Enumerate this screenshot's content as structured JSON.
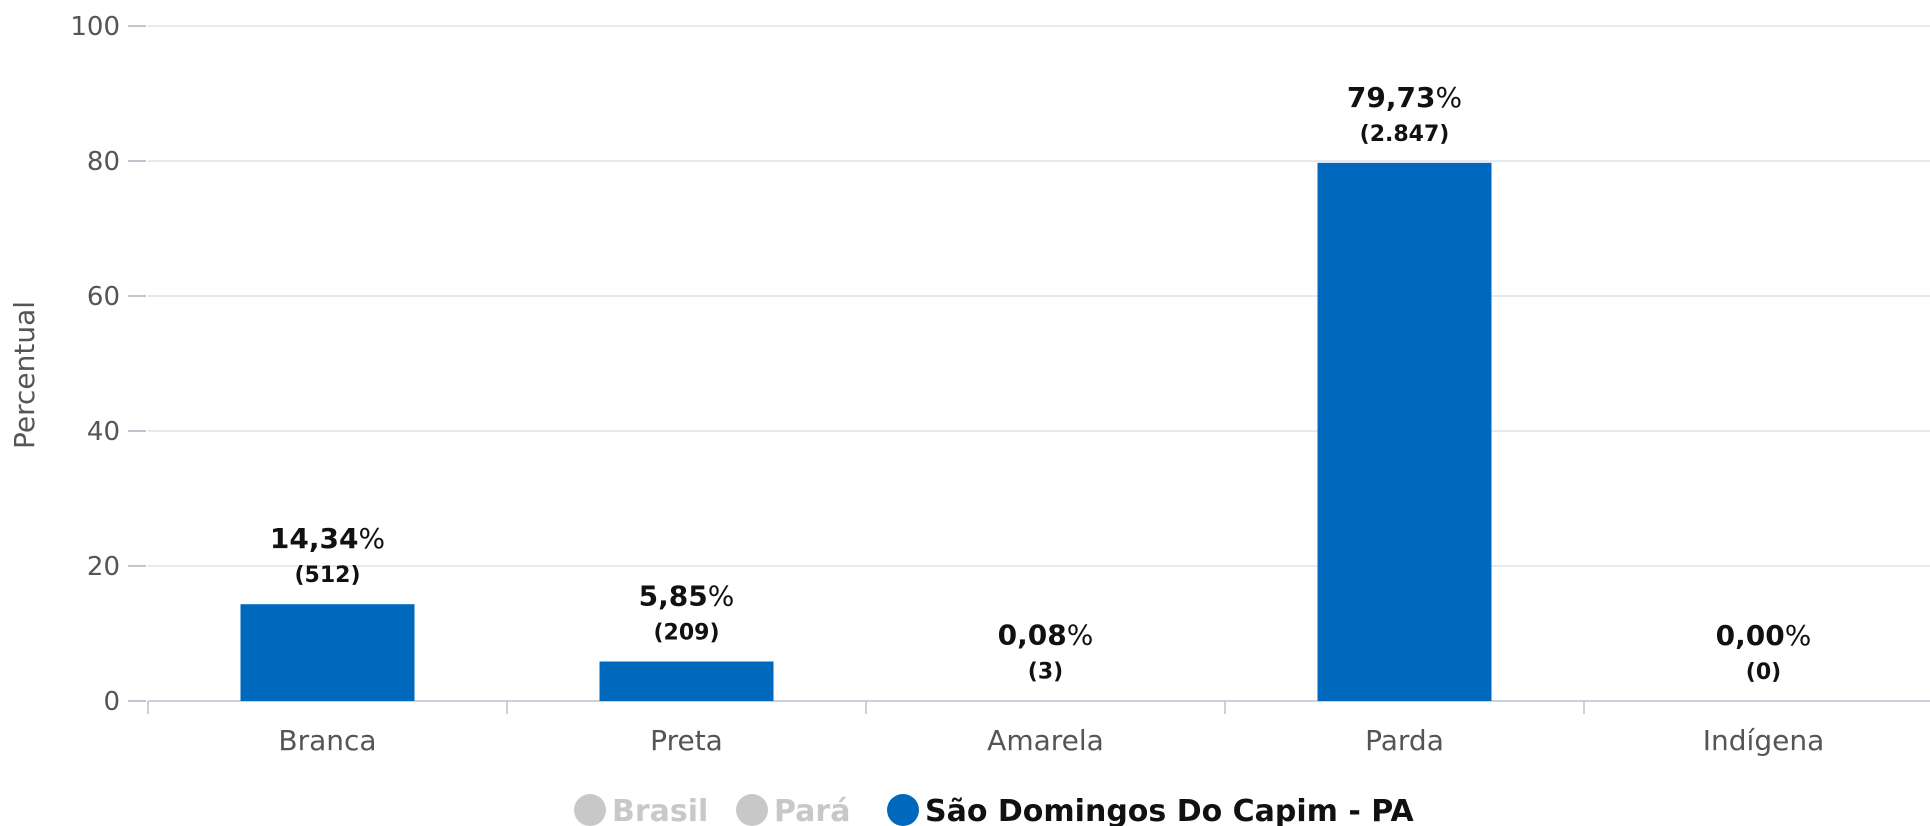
{
  "chart_data": {
    "type": "bar",
    "categories": [
      "Branca",
      "Preta",
      "Amarela",
      "Parda",
      "Indígena"
    ],
    "series": [
      {
        "name": "São Domingos Do Capim - PA",
        "values": [
          14.34,
          5.85,
          0.08,
          79.73,
          0.0
        ],
        "labels": [
          "14,34",
          "5,85",
          "0,08",
          "79,73",
          "0,00"
        ],
        "counts": [
          "(512)",
          "(209)",
          "(3)",
          "(2.847)",
          "(0)"
        ]
      }
    ],
    "ylabel": "Percentual",
    "ylim": [
      0,
      100
    ],
    "yticks": [
      0,
      20,
      40,
      60,
      80,
      100
    ],
    "grid": true,
    "percent_sign": "%",
    "legend": {
      "position": "bottom",
      "items": [
        {
          "label": "Brasil",
          "color": "#c8c8c8",
          "active": false
        },
        {
          "label": "Pará",
          "color": "#c8c8c8",
          "active": false
        },
        {
          "label": "São Domingos Do Capim - PA",
          "color": "#0068bd",
          "active": true
        }
      ]
    },
    "bar_color": "#0068bd"
  }
}
